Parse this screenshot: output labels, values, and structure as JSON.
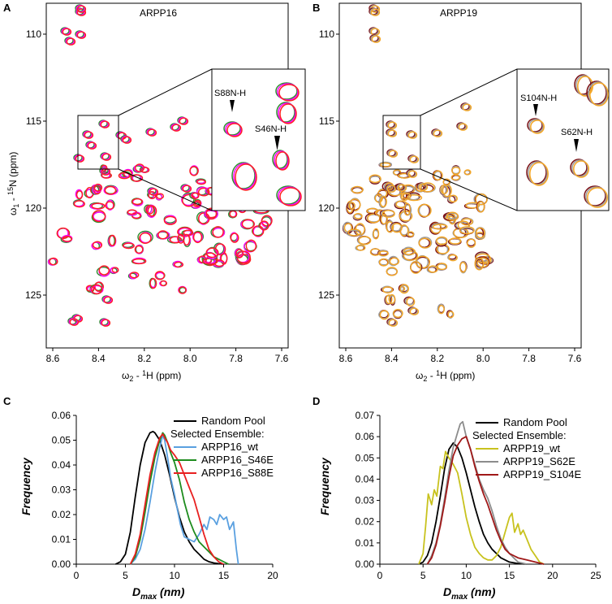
{
  "figure": {
    "panel_a": "A",
    "panel_b": "B",
    "panel_c": "C",
    "panel_d": "D"
  },
  "nmr_a": {
    "title": "ARPP16",
    "ylabel_main": "ω",
    "ylabel_sub": "1",
    "ylabel_rest": " - ",
    "ylabel_sup": "15",
    "ylabel_end": "N (ppm)",
    "xlabel_main": "ω",
    "xlabel_sub": "2",
    "xlabel_rest": " - ",
    "xlabel_sup": "1",
    "xlabel_end": "H (ppm)",
    "x_ticks": [
      "8.6",
      "8.4",
      "8.2",
      "8.0",
      "7.8",
      "7.6"
    ],
    "y_ticks": [
      "110",
      "115",
      "120",
      "125"
    ],
    "inset_labels": [
      "S88N-H",
      "S46N-H"
    ],
    "colors": [
      "#2e8b2e",
      "#ff00ff",
      "#ff2020"
    ]
  },
  "nmr_b": {
    "title": "ARPP19",
    "xlabel_main": "ω",
    "xlabel_sub": "2",
    "xlabel_rest": " - ",
    "xlabel_sup": "1",
    "xlabel_end": "H (ppm)",
    "x_ticks": [
      "8.6",
      "8.4",
      "8.2",
      "8.0",
      "7.8",
      "7.6"
    ],
    "y_ticks": [
      "110",
      "115",
      "120",
      "125"
    ],
    "inset_labels": [
      "S104N-H",
      "S62N-H"
    ],
    "colors": [
      "#7a0f14",
      "#9e9e9e",
      "#f5a623"
    ]
  },
  "chart_data": [
    {
      "type": "line",
      "panel": "C",
      "title": "",
      "xlabel": "D",
      "xlabel_sub": "max",
      "xlabel_unit": " (nm)",
      "ylabel": "Frequency",
      "xlim": [
        0,
        20
      ],
      "ylim": [
        0,
        0.06
      ],
      "x_ticks": [
        "0",
        "5",
        "10",
        "15",
        "20"
      ],
      "y_ticks": [
        "0.00",
        "0.01",
        "0.02",
        "0.03",
        "0.04",
        "0.05",
        "0.06"
      ],
      "legend_header": "Selected Ensemble:",
      "series": [
        {
          "name": "Random Pool",
          "color": "#000000",
          "x": [
            4.0,
            4.5,
            5.0,
            5.5,
            6.0,
            6.5,
            7.0,
            7.5,
            7.8,
            8.0,
            8.5,
            9.0,
            9.5,
            10.0,
            10.5,
            11.0,
            11.5,
            12.0,
            12.5,
            13.0,
            13.5,
            14.0,
            14.5,
            15.0
          ],
          "y": [
            0.0,
            0.001,
            0.004,
            0.013,
            0.027,
            0.04,
            0.049,
            0.053,
            0.0535,
            0.053,
            0.05,
            0.044,
            0.036,
            0.027,
            0.019,
            0.013,
            0.009,
            0.006,
            0.004,
            0.002,
            0.001,
            0.0005,
            0.0002,
            0.0
          ]
        },
        {
          "name": "ARPP16_wt",
          "color": "#5aa0e0",
          "x": [
            5.5,
            6.0,
            6.5,
            7.0,
            7.5,
            8.0,
            8.5,
            8.8,
            9.0,
            9.3,
            9.6,
            10.0,
            10.3,
            10.6,
            11.0,
            11.5,
            12.0,
            12.5,
            13.0,
            13.3,
            13.6,
            14.0,
            14.3,
            14.6,
            15.0,
            15.3,
            15.6,
            16.0,
            16.3,
            16.5
          ],
          "y": [
            0.0,
            0.002,
            0.006,
            0.014,
            0.025,
            0.037,
            0.047,
            0.052,
            0.05,
            0.043,
            0.035,
            0.028,
            0.022,
            0.016,
            0.011,
            0.01,
            0.009,
            0.012,
            0.016,
            0.014,
            0.019,
            0.018,
            0.016,
            0.02,
            0.018,
            0.019,
            0.014,
            0.017,
            0.006,
            0.0
          ]
        },
        {
          "name": "ARPP16_S46E",
          "color": "#1e8c1e",
          "x": [
            5.5,
            6.0,
            6.5,
            7.0,
            7.5,
            8.0,
            8.5,
            8.8,
            9.0,
            9.3,
            9.6,
            10.0,
            10.5,
            11.0,
            11.5,
            12.0,
            12.5,
            13.0,
            13.5,
            14.0,
            14.5,
            15.0,
            15.5
          ],
          "y": [
            0.0,
            0.003,
            0.01,
            0.021,
            0.033,
            0.043,
            0.05,
            0.053,
            0.052,
            0.049,
            0.045,
            0.041,
            0.034,
            0.025,
            0.018,
            0.013,
            0.009,
            0.007,
            0.005,
            0.003,
            0.002,
            0.001,
            0.0
          ]
        },
        {
          "name": "ARPP16_S88E",
          "color": "#e82020",
          "x": [
            5.5,
            6.0,
            6.5,
            7.0,
            7.5,
            8.0,
            8.5,
            8.8,
            9.0,
            9.3,
            9.6,
            10.0,
            10.5,
            11.0,
            11.5,
            12.0,
            12.5,
            13.0,
            13.5,
            14.0,
            14.5,
            15.0
          ],
          "y": [
            0.0,
            0.004,
            0.012,
            0.024,
            0.036,
            0.045,
            0.051,
            0.0525,
            0.051,
            0.049,
            0.046,
            0.044,
            0.041,
            0.036,
            0.031,
            0.026,
            0.019,
            0.012,
            0.006,
            0.003,
            0.001,
            0.0
          ]
        }
      ]
    },
    {
      "type": "line",
      "panel": "D",
      "title": "",
      "xlabel": "D",
      "xlabel_sub": "max",
      "xlabel_unit": " (nm)",
      "ylabel": "Frequency",
      "xlim": [
        0,
        25
      ],
      "ylim": [
        0,
        0.07
      ],
      "x_ticks": [
        "0",
        "5",
        "10",
        "15",
        "20",
        "25"
      ],
      "y_ticks": [
        "0.00",
        "0.01",
        "0.02",
        "0.03",
        "0.04",
        "0.05",
        "0.06",
        "0.07"
      ],
      "legend_header": "Selected Ensemble:",
      "series": [
        {
          "name": "Random Pool",
          "color": "#000000",
          "x": [
            4.5,
            5.0,
            5.5,
            6.0,
            6.5,
            7.0,
            7.5,
            8.0,
            8.5,
            9.0,
            9.5,
            10.0,
            10.5,
            11.0,
            11.5,
            12.0,
            12.5,
            13.0,
            13.5,
            14.0,
            14.5,
            15.0,
            16.0,
            17.0
          ],
          "y": [
            0.0,
            0.001,
            0.004,
            0.01,
            0.02,
            0.032,
            0.045,
            0.054,
            0.057,
            0.055,
            0.05,
            0.043,
            0.035,
            0.027,
            0.02,
            0.014,
            0.01,
            0.007,
            0.005,
            0.003,
            0.002,
            0.001,
            0.0003,
            0.0
          ]
        },
        {
          "name": "ARPP19_wt",
          "color": "#c8c21e",
          "x": [
            4.5,
            5.0,
            5.3,
            5.6,
            6.0,
            6.3,
            6.6,
            7.0,
            7.3,
            7.6,
            8.0,
            8.5,
            9.0,
            9.5,
            10.0,
            10.5,
            11.0,
            11.5,
            12.0,
            12.5,
            13.0,
            13.5,
            14.0,
            14.5,
            15.0,
            15.3,
            15.6,
            16.0,
            16.3,
            16.6,
            17.0,
            17.5,
            18.0,
            18.5,
            19.0
          ],
          "y": [
            0.0,
            0.005,
            0.018,
            0.033,
            0.028,
            0.035,
            0.032,
            0.046,
            0.045,
            0.053,
            0.05,
            0.047,
            0.043,
            0.033,
            0.022,
            0.014,
            0.008,
            0.005,
            0.003,
            0.002,
            0.002,
            0.004,
            0.008,
            0.015,
            0.022,
            0.024,
            0.015,
            0.019,
            0.014,
            0.016,
            0.012,
            0.007,
            0.004,
            0.001,
            0.0
          ]
        },
        {
          "name": "ARPP19_S62E",
          "color": "#8c8c8c",
          "x": [
            5.5,
            6.0,
            6.5,
            7.0,
            7.5,
            8.0,
            8.5,
            9.0,
            9.3,
            9.6,
            10.0,
            10.5,
            11.0,
            11.5,
            12.0,
            12.5,
            13.0,
            13.5,
            14.0,
            14.5,
            15.0,
            15.5,
            16.0,
            17.0
          ],
          "y": [
            0.0,
            0.004,
            0.01,
            0.019,
            0.031,
            0.044,
            0.055,
            0.062,
            0.066,
            0.067,
            0.06,
            0.054,
            0.047,
            0.04,
            0.035,
            0.031,
            0.025,
            0.018,
            0.012,
            0.008,
            0.005,
            0.003,
            0.001,
            0.0
          ]
        },
        {
          "name": "ARPP19_S104E",
          "color": "#a01818",
          "x": [
            5.5,
            6.0,
            6.5,
            7.0,
            7.5,
            8.0,
            8.5,
            9.0,
            9.5,
            10.0,
            10.5,
            11.0,
            11.5,
            12.0,
            12.5,
            13.0,
            13.5,
            14.0,
            14.5,
            15.0,
            15.5,
            16.0,
            17.0,
            18.0,
            19.0
          ],
          "y": [
            0.0,
            0.003,
            0.009,
            0.018,
            0.029,
            0.041,
            0.051,
            0.056,
            0.059,
            0.06,
            0.054,
            0.046,
            0.039,
            0.033,
            0.028,
            0.022,
            0.016,
            0.011,
            0.007,
            0.005,
            0.004,
            0.003,
            0.002,
            0.001,
            0.0
          ]
        }
      ]
    }
  ]
}
